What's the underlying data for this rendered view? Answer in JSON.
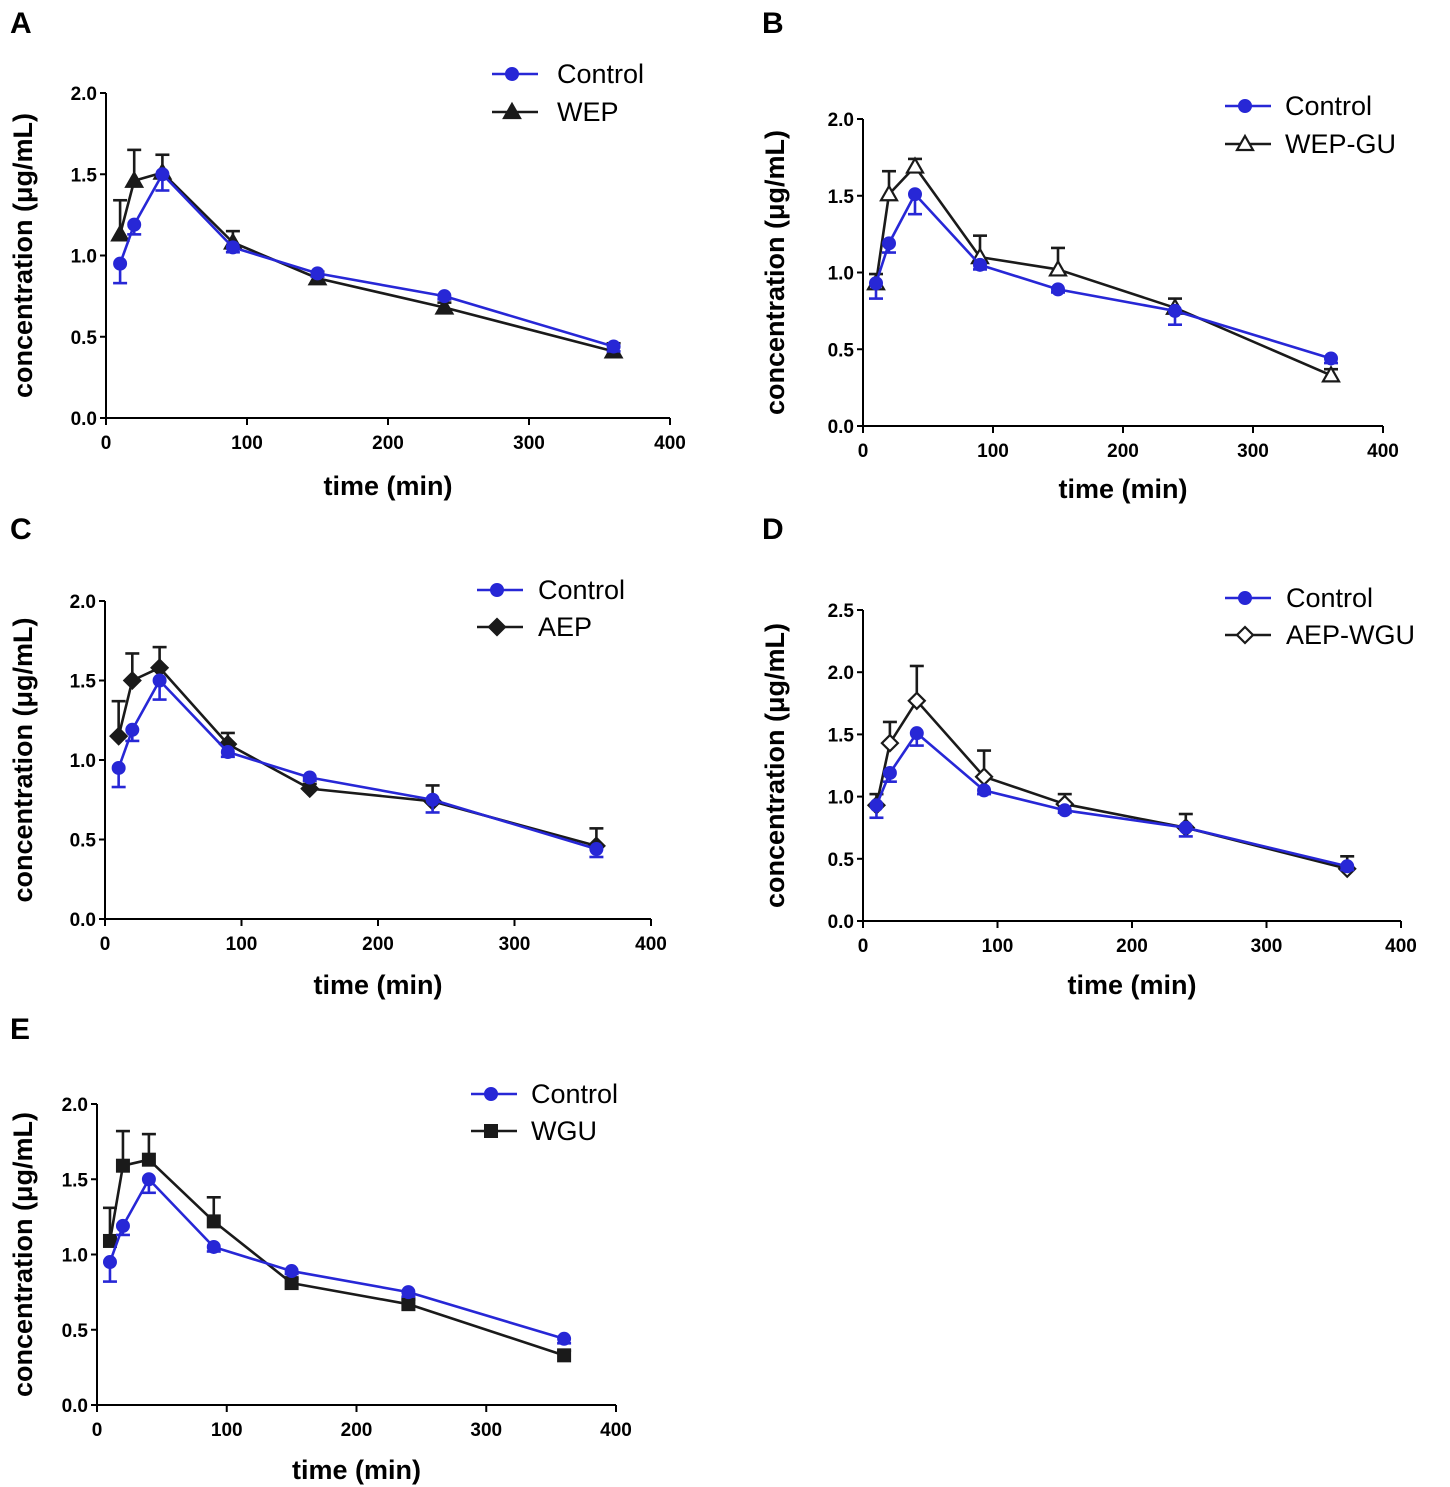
{
  "figure": {
    "colors": {
      "control": "#2727d6",
      "treatment": "#1a1a1a"
    }
  },
  "chart_data": [
    {
      "panel": "A",
      "type": "line",
      "xlabel": "time (min)",
      "ylabel": "concentration (μg/mL)",
      "xlim": [
        0,
        400
      ],
      "ylim": [
        0,
        2.0
      ],
      "xticks": [
        0,
        100,
        200,
        300,
        400
      ],
      "yticks": [
        0.0,
        0.5,
        1.0,
        1.5,
        2.0
      ],
      "ytick_labels": [
        "0.0",
        "0.5",
        "1.0",
        "1.5",
        "2.0"
      ],
      "legend_position": "top-right",
      "series": [
        {
          "name": "Control",
          "role": "control",
          "marker": "circle",
          "x": [
            10,
            20,
            40,
            90,
            150,
            240,
            360
          ],
          "y": [
            0.95,
            1.19,
            1.5,
            1.05,
            0.89,
            0.75,
            0.44
          ],
          "err": [
            0.12,
            0.06,
            0.1,
            0.03,
            0.02,
            0.02,
            0.03
          ],
          "err_dir": "down"
        },
        {
          "name": "WEP",
          "role": "treatment",
          "marker": "triangle-filled",
          "x": [
            10,
            20,
            40,
            90,
            150,
            240,
            360
          ],
          "y": [
            1.13,
            1.46,
            1.51,
            1.08,
            0.86,
            0.68,
            0.41
          ],
          "err": [
            0.21,
            0.19,
            0.11,
            0.07,
            0.04,
            0.03,
            0.05
          ],
          "err_dir": "up"
        }
      ]
    },
    {
      "panel": "B",
      "type": "line",
      "xlabel": "time (min)",
      "ylabel": "concentration (μg/mL)",
      "xlim": [
        0,
        400
      ],
      "ylim": [
        0,
        2.0
      ],
      "xticks": [
        0,
        100,
        200,
        300,
        400
      ],
      "yticks": [
        0.0,
        0.5,
        1.0,
        1.5,
        2.0
      ],
      "ytick_labels": [
        "0.0",
        "0.5",
        "1.0",
        "1.5",
        "2.0"
      ],
      "legend_position": "top-right",
      "series": [
        {
          "name": "Control",
          "role": "control",
          "marker": "circle",
          "x": [
            10,
            20,
            40,
            90,
            150,
            240,
            360
          ],
          "y": [
            0.93,
            1.19,
            1.51,
            1.05,
            0.89,
            0.75,
            0.44
          ],
          "err": [
            0.1,
            0.06,
            0.13,
            0.03,
            0.02,
            0.09,
            0.03
          ],
          "err_dir": "down"
        },
        {
          "name": "WEP-GU",
          "role": "treatment",
          "marker": "triangle-open",
          "x": [
            10,
            20,
            40,
            90,
            150,
            240,
            360
          ],
          "y": [
            0.93,
            1.51,
            1.69,
            1.1,
            1.02,
            0.77,
            0.33
          ],
          "err": [
            0.06,
            0.15,
            0.05,
            0.14,
            0.14,
            0.06,
            0.04
          ],
          "err_dir": "up"
        }
      ]
    },
    {
      "panel": "C",
      "type": "line",
      "xlabel": "time (min)",
      "ylabel": "concentration (μg/mL)",
      "xlim": [
        0,
        400
      ],
      "ylim": [
        0,
        2.0
      ],
      "xticks": [
        0,
        100,
        200,
        300,
        400
      ],
      "yticks": [
        0.0,
        0.5,
        1.0,
        1.5,
        2.0
      ],
      "ytick_labels": [
        "0.0",
        "0.5",
        "1.0",
        "1.5",
        "2.0"
      ],
      "legend_position": "top-right",
      "series": [
        {
          "name": "Control",
          "role": "control",
          "marker": "circle",
          "x": [
            10,
            20,
            40,
            90,
            150,
            240,
            360
          ],
          "y": [
            0.95,
            1.19,
            1.5,
            1.05,
            0.89,
            0.75,
            0.44
          ],
          "err": [
            0.12,
            0.07,
            0.12,
            0.03,
            0.02,
            0.08,
            0.05
          ],
          "err_dir": "down"
        },
        {
          "name": "AEP",
          "role": "treatment",
          "marker": "diamond-filled",
          "x": [
            10,
            20,
            40,
            90,
            150,
            240,
            360
          ],
          "y": [
            1.15,
            1.5,
            1.58,
            1.1,
            0.82,
            0.74,
            0.46
          ],
          "err": [
            0.22,
            0.17,
            0.13,
            0.07,
            0.03,
            0.1,
            0.11
          ],
          "err_dir": "up"
        }
      ]
    },
    {
      "panel": "D",
      "type": "line",
      "xlabel": "time (min)",
      "ylabel": "concentration (μg/mL)",
      "xlim": [
        0,
        400
      ],
      "ylim": [
        0,
        2.5
      ],
      "xticks": [
        0,
        100,
        200,
        300,
        400
      ],
      "yticks": [
        0.0,
        0.5,
        1.0,
        1.5,
        2.0,
        2.5
      ],
      "ytick_labels": [
        "0.0",
        "0.5",
        "1.0",
        "1.5",
        "2.0",
        "2.5"
      ],
      "legend_position": "top-right",
      "series": [
        {
          "name": "Control",
          "role": "control",
          "marker": "circle",
          "x": [
            10,
            20,
            40,
            90,
            150,
            240,
            360
          ],
          "y": [
            0.93,
            1.19,
            1.51,
            1.05,
            0.89,
            0.75,
            0.44
          ],
          "err": [
            0.1,
            0.07,
            0.1,
            0.03,
            0.02,
            0.07,
            0.03
          ],
          "err_dir": "down"
        },
        {
          "name": "AEP-WGU",
          "role": "treatment",
          "marker": "diamond-open",
          "x": [
            10,
            20,
            40,
            90,
            150,
            240,
            360
          ],
          "y": [
            0.93,
            1.43,
            1.77,
            1.16,
            0.94,
            0.75,
            0.42
          ],
          "err": [
            0.09,
            0.17,
            0.28,
            0.21,
            0.08,
            0.11,
            0.1
          ],
          "err_dir": "up"
        }
      ]
    },
    {
      "panel": "E",
      "type": "line",
      "xlabel": "time (min)",
      "ylabel": "concentration (μg/mL)",
      "xlim": [
        0,
        400
      ],
      "ylim": [
        0,
        2.0
      ],
      "xticks": [
        0,
        100,
        200,
        300,
        400
      ],
      "yticks": [
        0.0,
        0.5,
        1.0,
        1.5,
        2.0
      ],
      "ytick_labels": [
        "0.0",
        "0.5",
        "1.0",
        "1.5",
        "2.0"
      ],
      "legend_position": "top-right",
      "series": [
        {
          "name": "Control",
          "role": "control",
          "marker": "circle",
          "x": [
            10,
            20,
            40,
            90,
            150,
            240,
            360
          ],
          "y": [
            0.95,
            1.19,
            1.5,
            1.05,
            0.89,
            0.75,
            0.44
          ],
          "err": [
            0.13,
            0.06,
            0.09,
            0.03,
            0.02,
            0.03,
            0.03
          ],
          "err_dir": "down"
        },
        {
          "name": "WGU",
          "role": "treatment",
          "marker": "square-filled",
          "x": [
            10,
            20,
            40,
            90,
            150,
            240,
            360
          ],
          "y": [
            1.09,
            1.59,
            1.63,
            1.22,
            0.81,
            0.67,
            0.33
          ],
          "err": [
            0.22,
            0.23,
            0.17,
            0.16,
            0.03,
            0.03,
            0.03
          ],
          "err_dir": "up"
        }
      ]
    }
  ]
}
